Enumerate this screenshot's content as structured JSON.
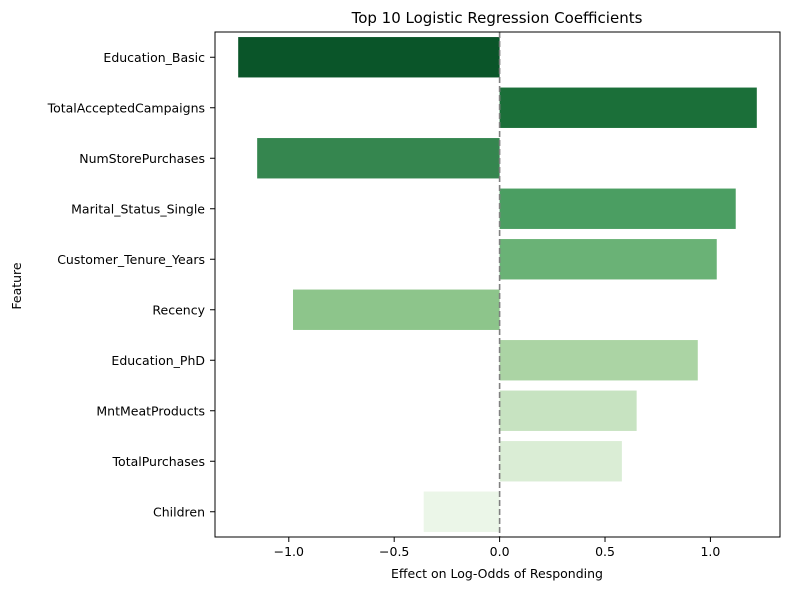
{
  "chart_data": {
    "type": "bar",
    "orientation": "horizontal",
    "title": "Top 10 Logistic Regression Coefficients",
    "xlabel": "Effect on Log-Odds of Responding",
    "ylabel": "Feature",
    "xlim": [
      -1.35,
      1.33
    ],
    "xticks": [
      -1.0,
      -0.5,
      0.0,
      0.5,
      1.0
    ],
    "xtick_labels": [
      "−1.0",
      "−0.5",
      "0.0",
      "0.5",
      "1.0"
    ],
    "reference_line": {
      "x": 0.0,
      "style": "dashed",
      "color": "#808080"
    },
    "grid": false,
    "categories": [
      "Education_Basic",
      "TotalAcceptedCampaigns",
      "NumStorePurchases",
      "Marital_Status_Single",
      "Customer_Tenure_Years",
      "Recency",
      "Education_PhD",
      "MntMeatProducts",
      "TotalPurchases",
      "Children"
    ],
    "values": [
      -1.24,
      1.22,
      -1.15,
      1.12,
      1.03,
      -0.98,
      0.94,
      0.65,
      0.58,
      -0.36
    ],
    "colors": [
      "#0a5529",
      "#1b6f39",
      "#35864f",
      "#4b9e62",
      "#6ab276",
      "#8dc58b",
      "#abd4a4",
      "#c7e3c1",
      "#daedd5",
      "#ebf6e8"
    ]
  }
}
